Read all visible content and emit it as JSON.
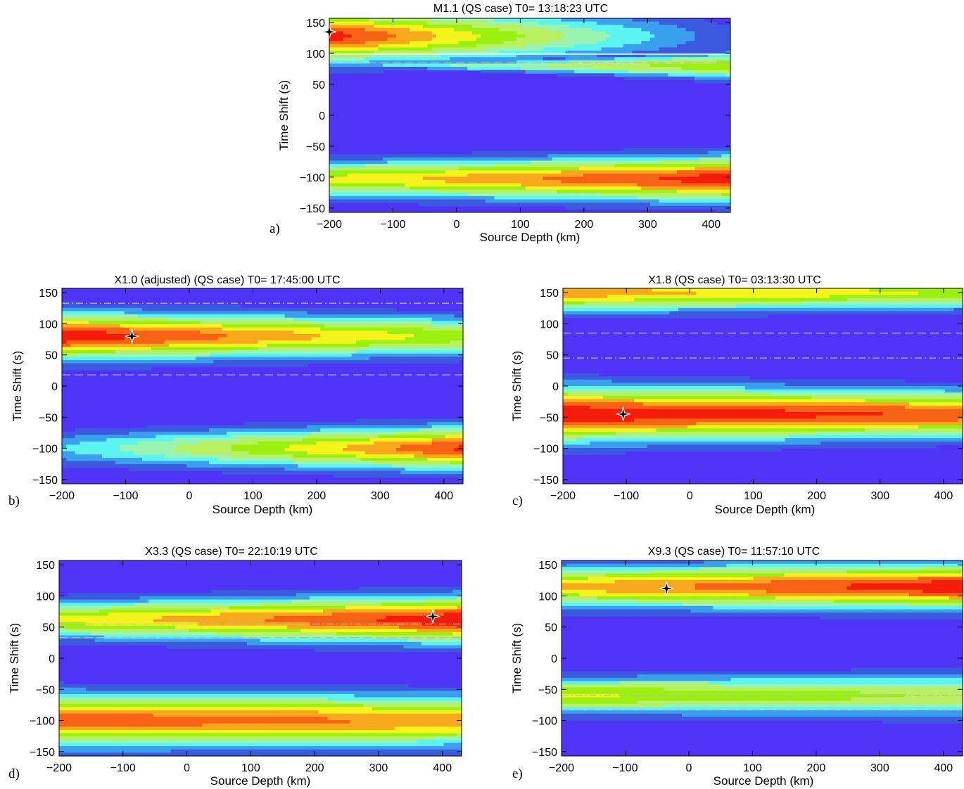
{
  "figure": {
    "palette": [
      "#4f34f8",
      "#3c5ae0",
      "#3aa0ee",
      "#5cf4f0",
      "#99f4b0",
      "#b8f060",
      "#9cf010",
      "#f4f41c",
      "#f8a81c",
      "#f86214",
      "#f61c0c"
    ],
    "background_color": "#4f34f8"
  },
  "chart_data": [
    {
      "id": "a",
      "panel_label": "a)",
      "type": "heatmap",
      "title": "M1.1 (QS case) T0= 13:18:23 UTC",
      "xlabel": "Source Depth (km)",
      "ylabel": "Time Shift (s)",
      "xlim": [
        -200,
        430
      ],
      "ylim": [
        -157,
        157
      ],
      "xticks": [
        -200,
        -100,
        0,
        100,
        200,
        300,
        400
      ],
      "yticks": [
        150,
        100,
        50,
        0,
        -50,
        -100,
        -150
      ],
      "peak": {
        "x": -200,
        "y": 135
      },
      "ref_lines": [
        {
          "y": 99,
          "style": "solid",
          "color": "#ffffff"
        },
        {
          "y": 85,
          "style": "dash",
          "color": "#b8b8b8"
        }
      ],
      "bands": [
        {
          "center": 128,
          "width_left": 58,
          "width_right": 50,
          "peak_left": 10.5,
          "peak_right": 1.2,
          "falloff": 90
        },
        {
          "center": 80,
          "width_left": 0,
          "width_right": 30,
          "peak_left": 3,
          "peak_right": 6.8,
          "falloff": 250
        },
        {
          "center": -103,
          "width_left": 40,
          "width_right": 50,
          "peak_left": 7.2,
          "peak_right": 10.6,
          "falloff": 200
        }
      ]
    },
    {
      "id": "b",
      "panel_label": "b)",
      "type": "heatmap",
      "title": "X1.0 (adjusted) (QS case) T0= 17:45:00 UTC",
      "xlabel": "Source Depth (km)",
      "ylabel": "Time Shift (s)",
      "xlim": [
        -200,
        430
      ],
      "ylim": [
        -157,
        157
      ],
      "xticks": [
        -200,
        -100,
        0,
        100,
        200,
        300,
        400
      ],
      "yticks": [
        150,
        100,
        50,
        0,
        -50,
        -100,
        -150
      ],
      "peak": {
        "x": -90,
        "y": 80
      },
      "ref_lines": [
        {
          "y": 133,
          "style": "dashdot",
          "color": "#b8b8b8"
        },
        {
          "y": 18,
          "style": "dash",
          "color": "#b8b8b8"
        }
      ],
      "bands": [
        {
          "center": 80,
          "width_left": 52,
          "width_right": 44,
          "peak_left": 10.8,
          "peak_right": 6.5,
          "falloff": 200
        },
        {
          "center": -100,
          "width_left": 40,
          "width_right": 48,
          "peak_left": 3,
          "peak_right": 10.2,
          "falloff": 120
        }
      ]
    },
    {
      "id": "c",
      "panel_label": "c)",
      "type": "heatmap",
      "title": "X1.8 (QS case) T0= 03:13:30 UTC",
      "xlabel": "Source Depth (km)",
      "ylabel": "Time Shift (s)",
      "xlim": [
        -200,
        430
      ],
      "ylim": [
        -157,
        157
      ],
      "xticks": [
        -200,
        -100,
        0,
        100,
        200,
        300,
        400
      ],
      "yticks": [
        150,
        100,
        50,
        0,
        -50,
        -100,
        -150
      ],
      "peak": {
        "x": -105,
        "y": -45
      },
      "ref_lines": [
        {
          "y": 85,
          "style": "dash",
          "color": "#b8b8b8"
        },
        {
          "y": 45,
          "style": "dashdot",
          "color": "#b8b8b8"
        }
      ],
      "bands": [
        {
          "center": -45,
          "width_left": 62,
          "width_right": 50,
          "peak_left": 10.8,
          "peak_right": 9.8,
          "falloff": 260
        },
        {
          "center": 150,
          "width_left": 42,
          "width_right": 36,
          "peak_left": 8.6,
          "peak_right": 6.8,
          "falloff": 300
        }
      ]
    },
    {
      "id": "d",
      "panel_label": "d)",
      "type": "heatmap",
      "title": "X3.3 (QS case) T0= 22:10:19 UTC",
      "xlabel": "Source Depth (km)",
      "ylabel": "Time Shift (s)",
      "xlim": [
        -200,
        430
      ],
      "ylim": [
        -157,
        157
      ],
      "xticks": [
        -200,
        -100,
        0,
        100,
        200,
        300,
        400
      ],
      "yticks": [
        150,
        100,
        50,
        0,
        -50,
        -100,
        -150
      ],
      "peak": {
        "x": 385,
        "y": 67
      },
      "ref_lines": [
        {
          "y": 55,
          "style": "dashdot",
          "color": "#b8b8b8"
        },
        {
          "y": 33,
          "style": "dash",
          "color": "#b8b8b8"
        }
      ],
      "bands": [
        {
          "center": 62,
          "width_left": 42,
          "width_right": 52,
          "peak_left": 7.2,
          "peak_right": 10.8,
          "falloff": 300
        },
        {
          "center": -100,
          "width_left": 60,
          "width_right": 55,
          "peak_left": 9.6,
          "peak_right": 8.8,
          "falloff": 350
        }
      ]
    },
    {
      "id": "e",
      "panel_label": "e)",
      "type": "heatmap",
      "title": "X9.3 (QS case) T0= 11:57:10 UTC",
      "xlabel": "Source Depth (km)",
      "ylabel": "Time Shift (s)",
      "xlim": [
        -200,
        430
      ],
      "ylim": [
        -157,
        157
      ],
      "xticks": [
        -200,
        -100,
        0,
        100,
        200,
        300,
        400
      ],
      "yticks": [
        150,
        100,
        50,
        0,
        -50,
        -100,
        -150
      ],
      "peak": {
        "x": -35,
        "y": 112
      },
      "ref_lines": [
        {
          "y": -60,
          "style": "dashdot",
          "color": "#b8b8b8"
        },
        {
          "y": -83,
          "style": "dash",
          "color": "#b8b8b8"
        }
      ],
      "bands": [
        {
          "center": 115,
          "width_left": 46,
          "width_right": 50,
          "peak_left": 8.2,
          "peak_right": 10.8,
          "falloff": 300
        },
        {
          "center": -60,
          "width_left": 40,
          "width_right": 48,
          "peak_left": 7.2,
          "peak_right": 5.8,
          "falloff": 300
        }
      ]
    }
  ]
}
